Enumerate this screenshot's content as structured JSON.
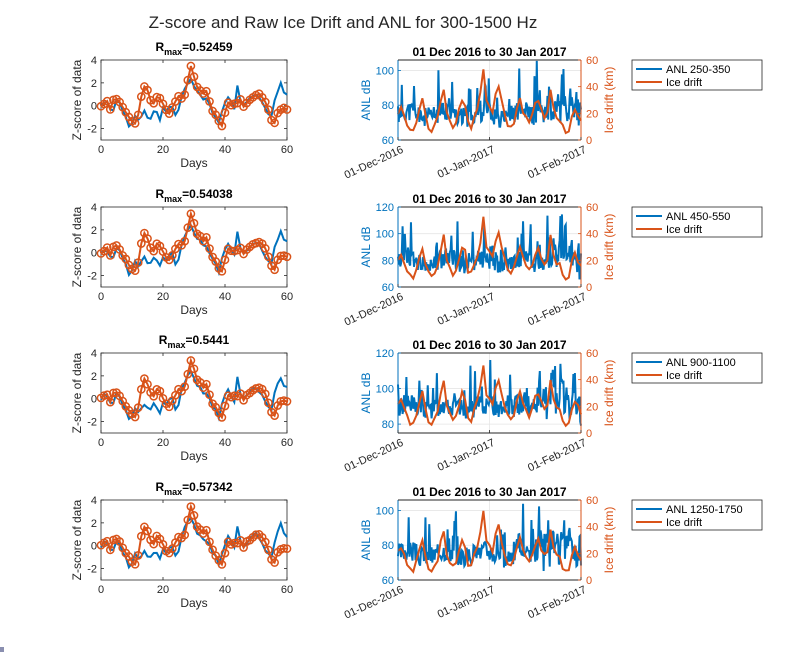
{
  "figure": {
    "suptitle": "Z-score and Raw Ice Drift and ANL for 300-1500 Hz"
  },
  "colors": {
    "series1": "#0072bd",
    "series2": "#d95319",
    "grid": "#e6e6e6",
    "axis": "#262626"
  },
  "chart_data": [
    {
      "type": "line",
      "title_prefix": "R",
      "title_sub": "max",
      "title_value": "=0.52459",
      "xlabel": "Days",
      "ylabel": "Z-score of data",
      "xlim": [
        0,
        60
      ],
      "ylim": [
        -3,
        4
      ],
      "xticks": [
        "0",
        "20",
        "40",
        "60"
      ],
      "yticks": [
        "4",
        "2",
        "0",
        "-2"
      ],
      "grid": false,
      "seed": 1,
      "series": [
        {
          "name": "",
          "style": "line"
        },
        {
          "name": "",
          "style": "line-circle-markers"
        }
      ]
    },
    {
      "type": "line",
      "title": "01 Dec 2016 to 30 Jan 2017",
      "ylabel_left": "ANL dB",
      "ylabel_right": "Ice drift (km)",
      "ylim_left": [
        60,
        106
      ],
      "yticks_left": [
        "100",
        "80",
        "60"
      ],
      "ylim_right": [
        0,
        60
      ],
      "yticks_right": [
        "60",
        "40",
        "20",
        "0"
      ],
      "xticks": [
        "01-Dec-2016",
        "01-Jan-2017",
        "01-Feb-2017"
      ],
      "grid": true,
      "legend": [
        "ANL 250-350",
        "Ice drift"
      ],
      "legend_position": "outside-right",
      "seed": 11,
      "series": [
        {
          "name": "ANL 250-350"
        },
        {
          "name": "Ice drift"
        }
      ]
    },
    {
      "type": "line",
      "title_prefix": "R",
      "title_sub": "max",
      "title_value": "=0.54038",
      "xlabel": "Days",
      "ylabel": "Z-score of data",
      "xlim": [
        0,
        60
      ],
      "ylim": [
        -3,
        4
      ],
      "xticks": [
        "0",
        "20",
        "40",
        "60"
      ],
      "yticks": [
        "4",
        "2",
        "0",
        "-2"
      ],
      "grid": false,
      "seed": 2,
      "series": [
        {
          "name": "",
          "style": "line"
        },
        {
          "name": "",
          "style": "line-circle-markers"
        }
      ]
    },
    {
      "type": "line",
      "title": "01 Dec 2016 to 30 Jan 2017",
      "ylabel_left": "ANL dB",
      "ylabel_right": "Ice drift (km)",
      "ylim_left": [
        60,
        120
      ],
      "yticks_left": [
        "120",
        "100",
        "80",
        "60"
      ],
      "ylim_right": [
        0,
        60
      ],
      "yticks_right": [
        "60",
        "40",
        "20",
        "0"
      ],
      "xticks": [
        "01-Dec-2016",
        "01-Jan-2017",
        "01-Feb-2017"
      ],
      "grid": true,
      "legend": [
        "ANL 450-550",
        "Ice drift"
      ],
      "legend_position": "outside-right",
      "seed": 12,
      "series": [
        {
          "name": "ANL 450-550"
        },
        {
          "name": "Ice drift"
        }
      ]
    },
    {
      "type": "line",
      "title_prefix": "R",
      "title_sub": "max",
      "title_value": "=0.5441",
      "xlabel": "Days",
      "ylabel": "Z-score of data",
      "xlim": [
        0,
        60
      ],
      "ylim": [
        -3,
        4
      ],
      "xticks": [
        "0",
        "20",
        "40",
        "60"
      ],
      "yticks": [
        "4",
        "2",
        "0",
        "-2"
      ],
      "grid": false,
      "seed": 3,
      "series": [
        {
          "name": "",
          "style": "line"
        },
        {
          "name": "",
          "style": "line-circle-markers"
        }
      ]
    },
    {
      "type": "line",
      "title": "01 Dec 2016 to 30 Jan 2017",
      "ylabel_left": "ANL dB",
      "ylabel_right": "Ice drift (km)",
      "ylim_left": [
        75,
        120
      ],
      "yticks_left": [
        "120",
        "100",
        "80"
      ],
      "ylim_right": [
        0,
        60
      ],
      "yticks_right": [
        "60",
        "40",
        "20",
        "0"
      ],
      "xticks": [
        "01-Dec-2016",
        "01-Jan-2017",
        "01-Feb-2017"
      ],
      "grid": true,
      "legend": [
        "ANL 900-1100",
        "Ice drift"
      ],
      "legend_position": "outside-right",
      "seed": 13,
      "series": [
        {
          "name": "ANL 900-1100"
        },
        {
          "name": "Ice drift"
        }
      ]
    },
    {
      "type": "line",
      "title_prefix": "R",
      "title_sub": "max",
      "title_value": "=0.57342",
      "xlabel": "Days",
      "ylabel": "Z-score of data",
      "xlim": [
        0,
        60
      ],
      "ylim": [
        -3,
        4
      ],
      "xticks": [
        "0",
        "20",
        "40",
        "60"
      ],
      "yticks": [
        "4",
        "2",
        "0",
        "-2"
      ],
      "grid": false,
      "seed": 4,
      "series": [
        {
          "name": "",
          "style": "line"
        },
        {
          "name": "",
          "style": "line-circle-markers"
        }
      ]
    },
    {
      "type": "line",
      "title": "01 Dec 2016 to 30 Jan 2017",
      "ylabel_left": "ANL dB",
      "ylabel_right": "Ice drift (km)",
      "ylim_left": [
        60,
        106
      ],
      "yticks_left": [
        "100",
        "80",
        "60"
      ],
      "ylim_right": [
        0,
        60
      ],
      "yticks_right": [
        "60",
        "40",
        "20",
        "0"
      ],
      "xticks": [
        "01-Dec-2016",
        "01-Jan-2017",
        "01-Feb-2017"
      ],
      "grid": true,
      "legend": [
        "ANL 1250-1750",
        "Ice drift"
      ],
      "legend_position": "outside-right",
      "seed": 14,
      "series": [
        {
          "name": "ANL 1250-1750"
        },
        {
          "name": "Ice drift"
        }
      ]
    }
  ]
}
